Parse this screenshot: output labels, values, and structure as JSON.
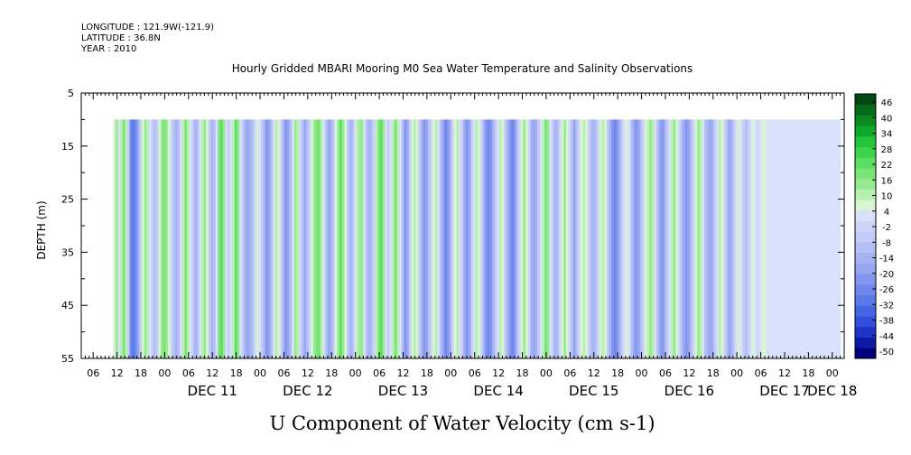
{
  "header": {
    "longitude": "LONGITUDE : 121.9W(-121.9)",
    "latitude": "LATITUDE : 36.8N",
    "year": "YEAR : 2010"
  },
  "chart_data": {
    "type": "heatmap",
    "title": "Hourly Gridded MBARI Mooring M0 Sea Water Temperature and Salinity Observations",
    "xlabel": "U Component of Water Velocity (cm s-1)",
    "ylabel": "DEPTH (m)",
    "ylim": [
      55,
      5
    ],
    "yticks": [
      5,
      15,
      25,
      35,
      45,
      55
    ],
    "data_depth_range": [
      10,
      55
    ],
    "x_start": "DEC 10 03:00",
    "x_end": "DEC 18 03:00",
    "data_start": "DEC 11 11:00",
    "data_end": "DEC 18 02:00",
    "hour_tick_labels": [
      "06",
      "12",
      "18",
      "00",
      "06",
      "12",
      "18",
      "00",
      "06",
      "12",
      "18",
      "00",
      "06",
      "12",
      "18",
      "00",
      "06",
      "12",
      "18",
      "00",
      "06",
      "12",
      "18",
      "00",
      "06",
      "12",
      "18",
      "00",
      "06",
      "12",
      "18",
      "00"
    ],
    "day_labels": [
      "DEC 11",
      "DEC 12",
      "DEC 13",
      "DEC 14",
      "DEC 15",
      "DEC 16",
      "DEC 17",
      "DEC 18"
    ],
    "colorbar": {
      "min": -50,
      "max": 50,
      "step": 2,
      "labels": [
        "46",
        "40",
        "34",
        "28",
        "22",
        "16",
        "10",
        "4",
        "-2",
        "-8",
        "-14",
        "-20",
        "-26",
        "-32",
        "-38",
        "-44",
        "-50"
      ],
      "colors_low_to_high": [
        "#000080",
        "#0c1aa6",
        "#1e34c8",
        "#3050dc",
        "#4566e4",
        "#5a7ae8",
        "#7088eb",
        "#8496ee",
        "#96a6f0",
        "#a6b3f3",
        "#b4bff5",
        "#c2ccf7",
        "#cdd6f8",
        "#d8e0fa",
        "#d6f5d0",
        "#b8f0b0",
        "#98ea92",
        "#7ae479",
        "#5cde62",
        "#3ed34e",
        "#22c43a",
        "#10a82c",
        "#0b8a22",
        "#06691a",
        "#034812"
      ]
    },
    "stripes": [
      {
        "t": 11.0,
        "u": 6
      },
      {
        "t": 11.6,
        "u": 14
      },
      {
        "t": 12.2,
        "u": 2
      },
      {
        "t": 12.8,
        "u": 10
      },
      {
        "t": 13.4,
        "u": 18
      },
      {
        "t": 14.0,
        "u": 12
      },
      {
        "t": 14.6,
        "u": -4
      },
      {
        "t": 15.2,
        "u": -24
      },
      {
        "t": 15.8,
        "u": -30
      },
      {
        "t": 16.4,
        "u": -26
      },
      {
        "t": 17.0,
        "u": -16
      },
      {
        "t": 17.6,
        "u": -4
      },
      {
        "t": 18.2,
        "u": 8
      },
      {
        "t": 18.8,
        "u": 14
      },
      {
        "t": 19.4,
        "u": 10
      },
      {
        "t": 20.0,
        "u": 2
      },
      {
        "t": 20.6,
        "u": -6
      },
      {
        "t": 21.2,
        "u": -10
      },
      {
        "t": 21.8,
        "u": -4
      },
      {
        "t": 22.4,
        "u": 6
      },
      {
        "t": 23.0,
        "u": 14
      },
      {
        "t": 23.6,
        "u": 20
      },
      {
        "t": 24.2,
        "u": 16
      },
      {
        "t": 24.8,
        "u": 8
      },
      {
        "t": 25.4,
        "u": -2
      },
      {
        "t": 26.0,
        "u": -10
      },
      {
        "t": 26.6,
        "u": -14
      },
      {
        "t": 27.2,
        "u": -8
      },
      {
        "t": 27.8,
        "u": 4
      },
      {
        "t": 28.4,
        "u": 12
      },
      {
        "t": 29.0,
        "u": 18
      },
      {
        "t": 29.6,
        "u": 12
      },
      {
        "t": 30.2,
        "u": 4
      },
      {
        "t": 30.8,
        "u": -6
      },
      {
        "t": 31.4,
        "u": -12
      },
      {
        "t": 32.0,
        "u": -8
      },
      {
        "t": 32.6,
        "u": 2
      },
      {
        "t": 33.2,
        "u": 10
      },
      {
        "t": 33.8,
        "u": 16
      },
      {
        "t": 34.4,
        "u": 8
      },
      {
        "t": 35.0,
        "u": -4
      },
      {
        "t": 35.6,
        "u": -12
      },
      {
        "t": 36.2,
        "u": -8
      },
      {
        "t": 36.8,
        "u": 4
      },
      {
        "t": 37.4,
        "u": 18
      },
      {
        "t": 38.0,
        "u": 22
      },
      {
        "t": 38.6,
        "u": 14
      },
      {
        "t": 39.2,
        "u": 2
      },
      {
        "t": 39.8,
        "u": -6
      },
      {
        "t": 40.4,
        "u": 2
      },
      {
        "t": 41.0,
        "u": 12
      },
      {
        "t": 41.6,
        "u": 22
      },
      {
        "t": 42.2,
        "u": 14
      },
      {
        "t": 42.8,
        "u": 4
      },
      {
        "t": 43.4,
        "u": -6
      },
      {
        "t": 44.0,
        "u": -14
      },
      {
        "t": 44.6,
        "u": -18
      },
      {
        "t": 45.2,
        "u": -14
      },
      {
        "t": 45.8,
        "u": -8
      },
      {
        "t": 46.4,
        "u": 0
      },
      {
        "t": 47.0,
        "u": 6
      },
      {
        "t": 47.6,
        "u": 2
      },
      {
        "t": 48.2,
        "u": -6
      },
      {
        "t": 48.8,
        "u": -14
      },
      {
        "t": 49.4,
        "u": -20
      },
      {
        "t": 50.0,
        "u": -16
      },
      {
        "t": 50.6,
        "u": -8
      },
      {
        "t": 51.2,
        "u": 4
      },
      {
        "t": 51.8,
        "u": 12
      },
      {
        "t": 52.4,
        "u": 8
      },
      {
        "t": 53.0,
        "u": -2
      },
      {
        "t": 53.6,
        "u": -14
      },
      {
        "t": 54.2,
        "u": -22
      },
      {
        "t": 54.8,
        "u": -18
      },
      {
        "t": 55.4,
        "u": -8
      },
      {
        "t": 56.0,
        "u": 4
      },
      {
        "t": 56.6,
        "u": 14
      },
      {
        "t": 57.2,
        "u": 10
      },
      {
        "t": 57.8,
        "u": 0
      },
      {
        "t": 58.4,
        "u": -10
      },
      {
        "t": 59.0,
        "u": -16
      },
      {
        "t": 59.6,
        "u": -10
      },
      {
        "t": 60.2,
        "u": -2
      },
      {
        "t": 60.8,
        "u": 8
      },
      {
        "t": 61.4,
        "u": 16
      },
      {
        "t": 62.0,
        "u": 20
      },
      {
        "t": 62.6,
        "u": 18
      },
      {
        "t": 63.2,
        "u": 10
      },
      {
        "t": 63.8,
        "u": 2
      },
      {
        "t": 64.4,
        "u": -8
      },
      {
        "t": 65.0,
        "u": -16
      },
      {
        "t": 65.6,
        "u": -14
      },
      {
        "t": 66.2,
        "u": -6
      },
      {
        "t": 66.8,
        "u": 6
      },
      {
        "t": 67.4,
        "u": 14
      },
      {
        "t": 68.0,
        "u": 22
      },
      {
        "t": 68.6,
        "u": 16
      },
      {
        "t": 69.2,
        "u": 6
      },
      {
        "t": 69.8,
        "u": -4
      },
      {
        "t": 70.4,
        "u": -12
      },
      {
        "t": 71.0,
        "u": -8
      },
      {
        "t": 71.6,
        "u": 2
      },
      {
        "t": 72.2,
        "u": 10
      },
      {
        "t": 72.8,
        "u": 16
      },
      {
        "t": 73.4,
        "u": 14
      },
      {
        "t": 74.0,
        "u": 4
      },
      {
        "t": 74.6,
        "u": -8
      },
      {
        "t": 75.2,
        "u": -14
      },
      {
        "t": 75.8,
        "u": -10
      },
      {
        "t": 76.4,
        "u": 0
      },
      {
        "t": 77.0,
        "u": 10
      },
      {
        "t": 77.6,
        "u": 18
      },
      {
        "t": 78.2,
        "u": 22
      },
      {
        "t": 78.8,
        "u": 14
      },
      {
        "t": 79.4,
        "u": 4
      },
      {
        "t": 80.0,
        "u": -4
      },
      {
        "t": 80.6,
        "u": 2
      },
      {
        "t": 81.2,
        "u": 12
      },
      {
        "t": 81.8,
        "u": 18
      },
      {
        "t": 82.4,
        "u": 12
      },
      {
        "t": 83.0,
        "u": 2
      },
      {
        "t": 83.6,
        "u": -10
      },
      {
        "t": 84.2,
        "u": -20
      },
      {
        "t": 84.8,
        "u": -16
      },
      {
        "t": 85.4,
        "u": -6
      },
      {
        "t": 86.0,
        "u": 6
      },
      {
        "t": 86.6,
        "u": 12
      },
      {
        "t": 87.2,
        "u": 6
      },
      {
        "t": 87.8,
        "u": -4
      },
      {
        "t": 88.4,
        "u": -14
      },
      {
        "t": 89.0,
        "u": -22
      },
      {
        "t": 89.6,
        "u": -18
      },
      {
        "t": 90.2,
        "u": -10
      },
      {
        "t": 90.8,
        "u": -2
      },
      {
        "t": 91.4,
        "u": 8
      },
      {
        "t": 92.0,
        "u": 12
      },
      {
        "t": 92.6,
        "u": 4
      },
      {
        "t": 93.2,
        "u": -8
      },
      {
        "t": 93.8,
        "u": -18
      },
      {
        "t": 94.4,
        "u": -26
      },
      {
        "t": 95.0,
        "u": -22
      },
      {
        "t": 95.6,
        "u": -12
      },
      {
        "t": 96.2,
        "u": -2
      },
      {
        "t": 96.8,
        "u": 8
      },
      {
        "t": 97.4,
        "u": 12
      },
      {
        "t": 98.0,
        "u": 4
      },
      {
        "t": 98.6,
        "u": -6
      },
      {
        "t": 99.2,
        "u": -16
      },
      {
        "t": 99.8,
        "u": -22
      },
      {
        "t": 100.4,
        "u": -16
      },
      {
        "t": 101.0,
        "u": -6
      },
      {
        "t": 101.6,
        "u": 4
      },
      {
        "t": 102.2,
        "u": 12
      },
      {
        "t": 102.8,
        "u": 8
      },
      {
        "t": 103.4,
        "u": -2
      },
      {
        "t": 104.0,
        "u": -12
      },
      {
        "t": 104.6,
        "u": -20
      },
      {
        "t": 105.2,
        "u": -26
      },
      {
        "t": 105.8,
        "u": -22
      },
      {
        "t": 106.4,
        "u": -12
      },
      {
        "t": 107.0,
        "u": -4
      },
      {
        "t": 107.6,
        "u": 4
      },
      {
        "t": 108.2,
        "u": 10
      },
      {
        "t": 108.8,
        "u": 6
      },
      {
        "t": 109.4,
        "u": -4
      },
      {
        "t": 110.0,
        "u": -14
      },
      {
        "t": 110.6,
        "u": -22
      },
      {
        "t": 111.2,
        "u": -26
      },
      {
        "t": 111.8,
        "u": -20
      },
      {
        "t": 112.4,
        "u": -10
      },
      {
        "t": 113.0,
        "u": 0
      },
      {
        "t": 113.6,
        "u": 8
      },
      {
        "t": 114.2,
        "u": 14
      },
      {
        "t": 114.8,
        "u": 8
      },
      {
        "t": 115.4,
        "u": -2
      },
      {
        "t": 116.0,
        "u": -12
      },
      {
        "t": 116.6,
        "u": -18
      },
      {
        "t": 117.2,
        "u": -14
      },
      {
        "t": 117.8,
        "u": -6
      },
      {
        "t": 118.4,
        "u": 4
      },
      {
        "t": 119.0,
        "u": 12
      },
      {
        "t": 119.6,
        "u": 18
      },
      {
        "t": 120.2,
        "u": 14
      },
      {
        "t": 120.8,
        "u": 4
      },
      {
        "t": 121.4,
        "u": -6
      },
      {
        "t": 122.0,
        "u": -14
      },
      {
        "t": 122.6,
        "u": -10
      },
      {
        "t": 123.2,
        "u": -2
      },
      {
        "t": 123.8,
        "u": 8
      },
      {
        "t": 124.4,
        "u": 14
      },
      {
        "t": 125.0,
        "u": 8
      },
      {
        "t": 125.6,
        "u": -2
      },
      {
        "t": 126.2,
        "u": -10
      },
      {
        "t": 126.8,
        "u": -16
      },
      {
        "t": 127.4,
        "u": -10
      },
      {
        "t": 128.0,
        "u": -2
      },
      {
        "t": 128.6,
        "u": 6
      },
      {
        "t": 129.2,
        "u": 12
      },
      {
        "t": 129.8,
        "u": 8
      },
      {
        "t": 130.4,
        "u": 0
      },
      {
        "t": 131.0,
        "u": -8
      },
      {
        "t": 131.6,
        "u": -14
      },
      {
        "t": 132.2,
        "u": -10
      },
      {
        "t": 132.8,
        "u": -2
      },
      {
        "t": 133.4,
        "u": 6
      },
      {
        "t": 134.0,
        "u": 12
      },
      {
        "t": 134.6,
        "u": 6
      },
      {
        "t": 135.2,
        "u": -4
      },
      {
        "t": 135.8,
        "u": -14
      },
      {
        "t": 136.4,
        "u": -20
      },
      {
        "t": 137.0,
        "u": -24
      },
      {
        "t": 137.6,
        "u": -20
      },
      {
        "t": 138.2,
        "u": -12
      },
      {
        "t": 138.8,
        "u": -4
      },
      {
        "t": 139.4,
        "u": 4
      },
      {
        "t": 140.0,
        "u": 8
      },
      {
        "t": 140.6,
        "u": 2
      },
      {
        "t": 141.2,
        "u": -8
      },
      {
        "t": 141.8,
        "u": -16
      },
      {
        "t": 142.4,
        "u": -22
      },
      {
        "t": 143.0,
        "u": -18
      },
      {
        "t": 143.6,
        "u": -10
      },
      {
        "t": 144.2,
        "u": -2
      },
      {
        "t": 144.8,
        "u": 6
      },
      {
        "t": 145.4,
        "u": 12
      },
      {
        "t": 146.0,
        "u": 16
      },
      {
        "t": 146.6,
        "u": 10
      },
      {
        "t": 147.2,
        "u": 2
      },
      {
        "t": 147.8,
        "u": -8
      },
      {
        "t": 148.4,
        "u": -16
      },
      {
        "t": 149.0,
        "u": -20
      },
      {
        "t": 149.6,
        "u": -14
      },
      {
        "t": 150.2,
        "u": -6
      },
      {
        "t": 150.8,
        "u": 2
      },
      {
        "t": 151.4,
        "u": 10
      },
      {
        "t": 152.0,
        "u": 14
      },
      {
        "t": 152.6,
        "u": 8
      },
      {
        "t": 153.2,
        "u": 0
      },
      {
        "t": 153.8,
        "u": -10
      },
      {
        "t": 154.4,
        "u": -18
      },
      {
        "t": 155.0,
        "u": -22
      },
      {
        "t": 155.6,
        "u": -16
      },
      {
        "t": 156.2,
        "u": -8
      },
      {
        "t": 156.8,
        "u": 0
      },
      {
        "t": 157.4,
        "u": 8
      },
      {
        "t": 158.0,
        "u": 14
      },
      {
        "t": 158.6,
        "u": 10
      },
      {
        "t": 159.2,
        "u": 2
      },
      {
        "t": 159.8,
        "u": -8
      },
      {
        "t": 160.4,
        "u": -14
      },
      {
        "t": 161.0,
        "u": -18
      },
      {
        "t": 161.6,
        "u": -12
      },
      {
        "t": 162.2,
        "u": -4
      },
      {
        "t": 162.8,
        "u": 4
      },
      {
        "t": 163.4,
        "u": 10
      },
      {
        "t": 164.0,
        "u": 6
      },
      {
        "t": 164.6,
        "u": -2
      },
      {
        "t": 165.2,
        "u": -10
      },
      {
        "t": 165.8,
        "u": -16
      },
      {
        "t": 166.4,
        "u": -12
      },
      {
        "t": 167.0,
        "u": -6
      },
      {
        "t": 167.6,
        "u": 2
      },
      {
        "t": 168.2,
        "u": 8
      },
      {
        "t": 168.8,
        "u": 4
      },
      {
        "t": 169.4,
        "u": -4
      },
      {
        "t": 170.0,
        "u": -8
      },
      {
        "t": 170.6,
        "u": -4
      },
      {
        "t": 171.2,
        "u": 2
      },
      {
        "t": 171.8,
        "u": 6
      },
      {
        "t": 172.4,
        "u": 4
      },
      {
        "t": 173.0,
        "u": 0
      },
      {
        "t": 173.6,
        "u": 4
      },
      {
        "t": 174.2,
        "u": 8
      },
      {
        "t": 174.8,
        "u": 6
      },
      {
        "t": 175.4,
        "u": 2
      }
    ]
  }
}
